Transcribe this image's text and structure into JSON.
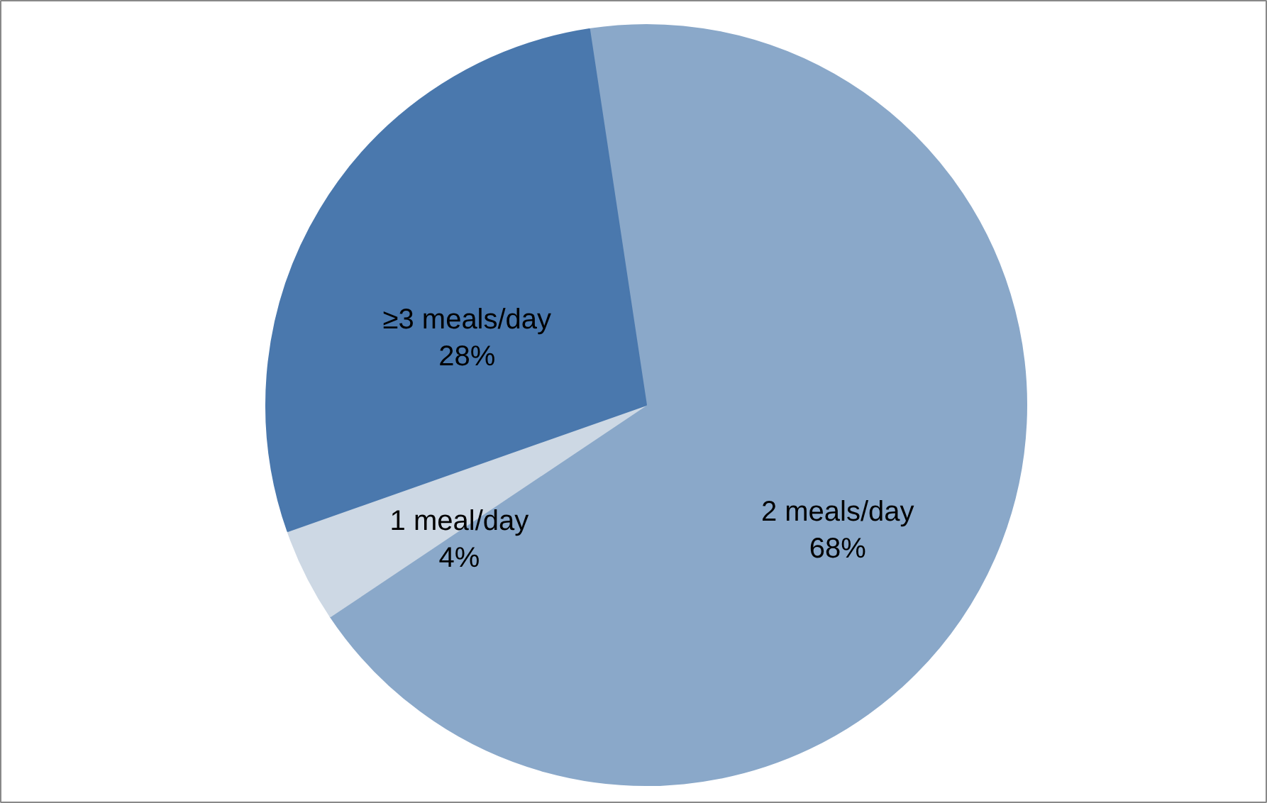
{
  "chart_data": {
    "type": "pie",
    "categories": [
      "2 meals/day",
      "1 meal/day",
      "≥3 meals/day"
    ],
    "values": [
      68,
      4,
      28
    ],
    "value_labels": [
      "68%",
      "4%",
      "28%"
    ],
    "colors": [
      "#8aa8c9",
      "#cdd8e4",
      "#4a78ad"
    ],
    "legend": false
  }
}
